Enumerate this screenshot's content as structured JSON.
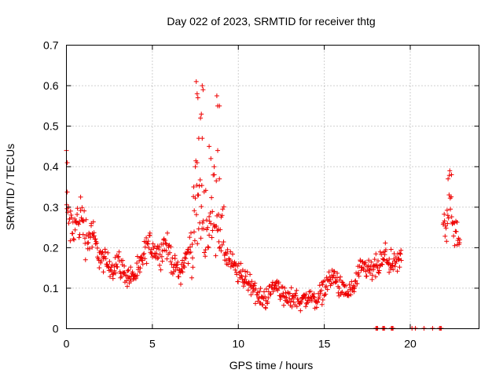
{
  "chart_data": {
    "type": "scatter",
    "title": "Day 022 of 2023, SRMTID for receiver thtg",
    "xlabel": "GPS time / hours",
    "ylabel": "SRMTID / TECUs",
    "xlim": [
      0,
      24
    ],
    "ylim": [
      0,
      0.7
    ],
    "xticks": [
      0,
      5,
      10,
      15,
      20
    ],
    "xtick_labels": [
      "0",
      "5",
      "10",
      "15",
      "20"
    ],
    "yticks": [
      0,
      0.1,
      0.2,
      0.3,
      0.4,
      0.5,
      0.6,
      0.7
    ],
    "ytick_labels": [
      "0",
      "0.1",
      "0.2",
      "0.3",
      "0.4",
      "0.5",
      "0.6",
      "0.7"
    ],
    "grid": true,
    "marker": "plus",
    "series": [
      {
        "name": "SRMTID",
        "color": "#ee0000",
        "trend": [
          [
            0.0,
            0.3
          ],
          [
            0.3,
            0.24
          ],
          [
            0.6,
            0.26
          ],
          [
            0.9,
            0.28
          ],
          [
            1.2,
            0.22
          ],
          [
            1.5,
            0.24
          ],
          [
            1.8,
            0.19
          ],
          [
            2.1,
            0.17
          ],
          [
            2.4,
            0.16
          ],
          [
            2.7,
            0.15
          ],
          [
            3.0,
            0.17
          ],
          [
            3.3,
            0.14
          ],
          [
            3.6,
            0.13
          ],
          [
            3.9,
            0.13
          ],
          [
            4.2,
            0.14
          ],
          [
            4.5,
            0.18
          ],
          [
            4.8,
            0.21
          ],
          [
            5.1,
            0.2
          ],
          [
            5.4,
            0.18
          ],
          [
            5.7,
            0.21
          ],
          [
            6.0,
            0.19
          ],
          [
            6.3,
            0.15
          ],
          [
            6.6,
            0.14
          ],
          [
            6.9,
            0.17
          ],
          [
            7.2,
            0.2
          ],
          [
            7.5,
            0.28
          ],
          [
            7.8,
            0.3
          ],
          [
            8.1,
            0.26
          ],
          [
            8.4,
            0.25
          ],
          [
            8.7,
            0.32
          ],
          [
            9.0,
            0.22
          ],
          [
            9.3,
            0.18
          ],
          [
            9.6,
            0.16
          ],
          [
            9.9,
            0.14
          ],
          [
            10.2,
            0.13
          ],
          [
            10.5,
            0.12
          ],
          [
            10.8,
            0.11
          ],
          [
            11.1,
            0.08
          ],
          [
            11.4,
            0.07
          ],
          [
            11.7,
            0.08
          ],
          [
            12.0,
            0.1
          ],
          [
            12.3,
            0.11
          ],
          [
            12.6,
            0.08
          ],
          [
            12.9,
            0.07
          ],
          [
            13.2,
            0.08
          ],
          [
            13.5,
            0.07
          ],
          [
            13.8,
            0.07
          ],
          [
            14.1,
            0.08
          ],
          [
            14.4,
            0.07
          ],
          [
            14.7,
            0.08
          ],
          [
            15.0,
            0.1
          ],
          [
            15.3,
            0.12
          ],
          [
            15.6,
            0.13
          ],
          [
            15.9,
            0.1
          ],
          [
            16.2,
            0.09
          ],
          [
            16.5,
            0.09
          ],
          [
            16.8,
            0.11
          ],
          [
            17.1,
            0.14
          ],
          [
            17.4,
            0.15
          ],
          [
            17.7,
            0.14
          ],
          [
            18.0,
            0.15
          ],
          [
            18.3,
            0.16
          ],
          [
            18.6,
            0.18
          ],
          [
            19.0,
            0.15
          ],
          [
            19.2,
            0.16
          ],
          [
            19.5,
            0.17
          ]
        ],
        "late_trend": [
          [
            21.9,
            0.27
          ],
          [
            22.1,
            0.24
          ],
          [
            22.3,
            0.35
          ],
          [
            22.5,
            0.26
          ],
          [
            22.7,
            0.22
          ],
          [
            22.9,
            0.21
          ]
        ],
        "peaks": [
          [
            7.55,
            0.61
          ],
          [
            7.6,
            0.58
          ],
          [
            7.65,
            0.57
          ],
          [
            7.9,
            0.6
          ],
          [
            7.95,
            0.59
          ],
          [
            7.85,
            0.53
          ],
          [
            7.8,
            0.52
          ],
          [
            8.75,
            0.575
          ],
          [
            8.8,
            0.55
          ],
          [
            8.9,
            0.55
          ],
          [
            7.7,
            0.47
          ],
          [
            7.9,
            0.47
          ],
          [
            8.3,
            0.45
          ],
          [
            8.4,
            0.42
          ],
          [
            8.8,
            0.44
          ],
          [
            7.6,
            0.41
          ],
          [
            7.5,
            0.4
          ],
          [
            8.6,
            0.38
          ],
          [
            8.9,
            0.37
          ],
          [
            7.4,
            0.35
          ],
          [
            0.0,
            0.44
          ],
          [
            0.05,
            0.41
          ],
          [
            22.3,
            0.39
          ],
          [
            22.4,
            0.38
          ],
          [
            22.2,
            0.37
          ]
        ],
        "zero_points": [
          18.0,
          18.05,
          18.1,
          18.4,
          18.45,
          18.5,
          18.9,
          18.95,
          19.0,
          20.1,
          20.3,
          20.8,
          21.3,
          21.7,
          21.75,
          21.8
        ]
      }
    ]
  }
}
